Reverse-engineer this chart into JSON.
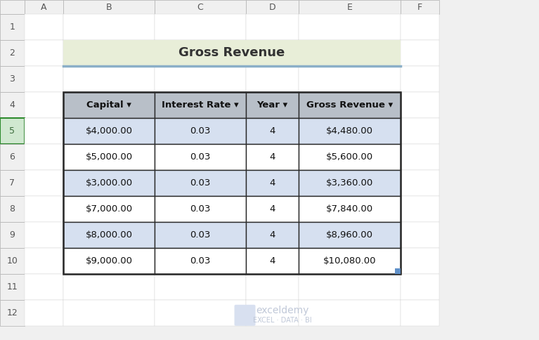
{
  "title": "Gross Revenue",
  "title_bg": "#e8eed8",
  "title_border": "#8bafc8",
  "col_headers": [
    "Capital ▾",
    "Interest Rate ▾",
    "Year ▾",
    "Gross Revenue ▾"
  ],
  "header_bg": "#b8bfc8",
  "row_data": [
    [
      "$4,000.00",
      "0.03",
      "4",
      "$4,480.00"
    ],
    [
      "$5,000.00",
      "0.03",
      "4",
      "$5,600.00"
    ],
    [
      "$3,000.00",
      "0.03",
      "4",
      "$3,360.00"
    ],
    [
      "$7,000.00",
      "0.03",
      "4",
      "$7,840.00"
    ],
    [
      "$8,000.00",
      "0.03",
      "4",
      "$8,960.00"
    ],
    [
      "$9,000.00",
      "0.03",
      "4",
      "$10,080.00"
    ]
  ],
  "row_bg_odd": "#d6e0f0",
  "row_bg_even": "#ffffff",
  "table_border": "#2a2a2a",
  "cell_border": "#2a2a2a",
  "row_labels": [
    "1",
    "2",
    "3",
    "4",
    "5",
    "6",
    "7",
    "8",
    "9",
    "10",
    "11",
    "12"
  ],
  "col_labels": [
    "A",
    "B",
    "C",
    "D",
    "E",
    "F"
  ],
  "excel_bg": "#f0f0f0",
  "sheet_bg": "#ffffff",
  "watermark_text": "exceldemy\nEXCEL · DATA · BI",
  "selected_row_border": "#2e8b2e"
}
